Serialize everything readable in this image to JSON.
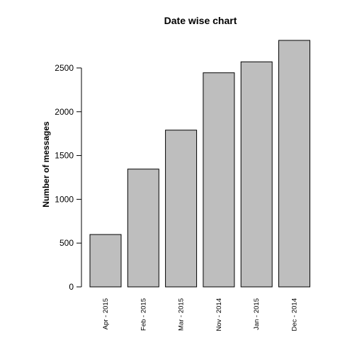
{
  "chart_data": {
    "type": "bar",
    "title": "Date wise chart",
    "xlabel": "",
    "ylabel": "Number of messages",
    "categories": [
      "Apr - 2015",
      "Feb - 2015",
      "Mar - 2015",
      "Nov - 2014",
      "Jan - 2015",
      "Dec - 2014"
    ],
    "values": [
      598,
      1345,
      1790,
      2445,
      2570,
      2815
    ],
    "yticks": [
      "0",
      "500",
      "1000",
      "1500",
      "2000",
      "2500"
    ],
    "ylim": [
      0,
      2815
    ],
    "grid": false,
    "bar_color": "#bebebe",
    "edge_color": "#000000"
  }
}
